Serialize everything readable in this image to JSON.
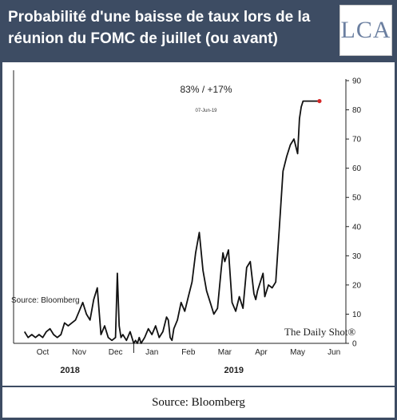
{
  "header": {
    "title": "Probabilité d'une baisse de taux lors de la réunion du FOMC de juillet (ou avant)",
    "logo_text": "LCA"
  },
  "footer": {
    "source": "Source: Bloomberg"
  },
  "chart_data": {
    "type": "line",
    "title": "",
    "xlabel": "",
    "ylabel": "",
    "ylim": [
      0,
      90
    ],
    "y_ticks": [
      0,
      10,
      20,
      30,
      40,
      50,
      60,
      70,
      80,
      90
    ],
    "y_axis_side": "right",
    "grid": false,
    "month_labels": [
      "Oct",
      "Nov",
      "Dec",
      "Jan",
      "Feb",
      "Mar",
      "Apr",
      "May",
      "Jun"
    ],
    "month_positions": [
      0.5,
      1.5,
      2.5,
      3.5,
      4.5,
      5.5,
      6.5,
      7.5,
      8.5
    ],
    "year_labels": [
      "2018",
      "2019"
    ],
    "annotation": {
      "text": "83%  /  +17%",
      "date": "07-Jun-19"
    },
    "inner_source": "Source: Bloomberg",
    "watermark": "The Daily Shot®",
    "line_color": "#111111",
    "endpoint_color": "#d62728",
    "series": [
      {
        "x": [
          0.0,
          0.1,
          0.2,
          0.3,
          0.4,
          0.5,
          0.6,
          0.7,
          0.8,
          0.9,
          1.0,
          1.1,
          1.2,
          1.3,
          1.4,
          1.5,
          1.6,
          1.7,
          1.8,
          1.9,
          2.0,
          2.1,
          2.2,
          2.3,
          2.4,
          2.5,
          2.55,
          2.6,
          2.65,
          2.7,
          2.8,
          2.9,
          3.0,
          3.05,
          3.1,
          3.15,
          3.2,
          3.3,
          3.4,
          3.5,
          3.6,
          3.7,
          3.8,
          3.9,
          3.95,
          4.0,
          4.05,
          4.1,
          4.2,
          4.3,
          4.4,
          4.5,
          4.6,
          4.7,
          4.8,
          4.9,
          5.0,
          5.1,
          5.2,
          5.3,
          5.4,
          5.45,
          5.5,
          5.6,
          5.7,
          5.8,
          5.9,
          6.0,
          6.1,
          6.2,
          6.3,
          6.35,
          6.4,
          6.5,
          6.55,
          6.6,
          6.7,
          6.8,
          6.9,
          7.0,
          7.1,
          7.2,
          7.3,
          7.4,
          7.5,
          7.55,
          7.6,
          7.65,
          7.7,
          7.75,
          7.8,
          7.85,
          7.9,
          7.95,
          8.0,
          8.05,
          8.1
        ],
        "y": [
          4,
          2,
          3,
          2,
          3,
          2,
          4,
          5,
          3,
          2,
          3,
          7,
          6,
          7,
          8,
          11,
          14,
          10,
          8,
          15,
          19,
          3,
          6,
          2,
          1,
          2,
          24,
          6,
          2,
          3,
          1,
          4,
          0,
          1,
          0,
          2,
          0,
          2,
          5,
          3,
          6,
          2,
          4,
          9,
          8,
          2,
          1,
          5,
          8,
          14,
          11,
          16,
          21,
          31,
          38,
          25,
          18,
          14,
          10,
          12,
          25,
          31,
          28,
          32,
          14,
          11,
          16,
          12,
          26,
          28,
          17,
          15,
          18,
          22,
          24,
          16,
          20,
          19,
          21,
          40,
          59,
          64,
          68,
          70,
          65,
          77,
          81,
          83,
          83,
          83,
          83,
          83,
          83,
          83,
          83,
          83,
          83
        ]
      }
    ]
  }
}
